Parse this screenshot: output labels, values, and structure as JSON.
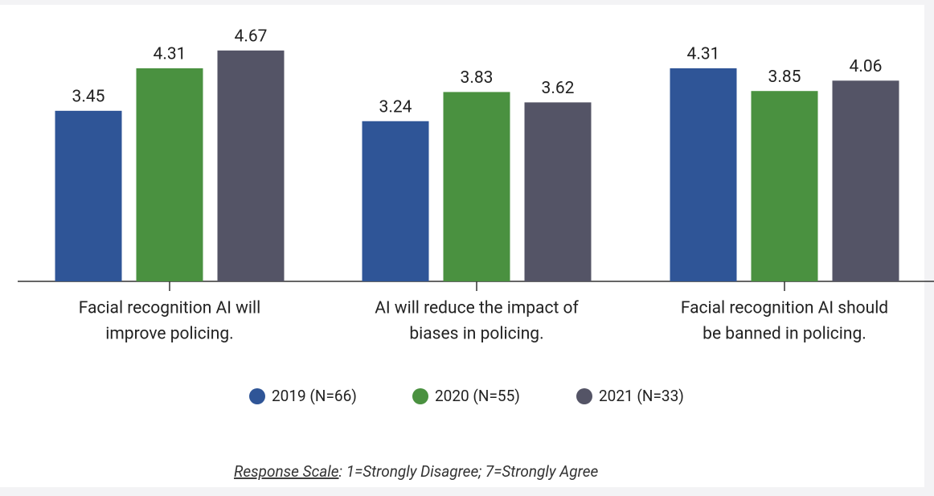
{
  "chart_data": {
    "type": "bar",
    "categories": [
      [
        "Facial recognition AI will",
        "improve policing."
      ],
      [
        "AI will reduce the impact of",
        "biases in policing."
      ],
      [
        "Facial recognition AI should",
        "be banned in policing."
      ]
    ],
    "series": [
      {
        "name": "2019 (N=66)",
        "color": "#2f5597",
        "values": [
          3.45,
          3.24,
          4.31
        ]
      },
      {
        "name": "2020 (N=55)",
        "color": "#4a9140",
        "values": [
          4.31,
          3.83,
          3.85
        ]
      },
      {
        "name": "2021 (N=33)",
        "color": "#545466",
        "values": [
          4.67,
          3.62,
          4.06
        ]
      }
    ],
    "ylim": [
      0,
      5
    ],
    "footnote": {
      "label": "Response Scale",
      "text": ": 1=Strongly Disagree; 7=Strongly Agree"
    }
  }
}
